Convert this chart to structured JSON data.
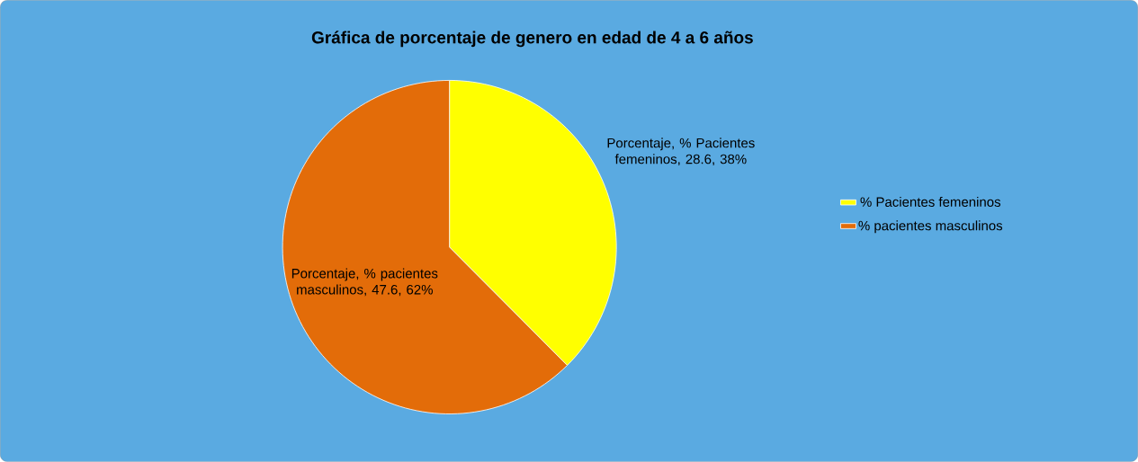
{
  "chart_data": {
    "type": "pie",
    "title": "Gráfica de porcentaje de genero en edad de 4 a 6 años",
    "categories": [
      "% Pacientes femeninos",
      "% pacientes masculinos"
    ],
    "values": [
      28.6,
      47.6
    ],
    "colors": [
      "#ffff00",
      "#e36c09"
    ],
    "value_labels": [
      "Porcentaje, % Pacientes femeninos, 28.6, 38%",
      "Porcentaje, % pacientes masculinos, 47.6, 62%"
    ],
    "legend": "right"
  }
}
